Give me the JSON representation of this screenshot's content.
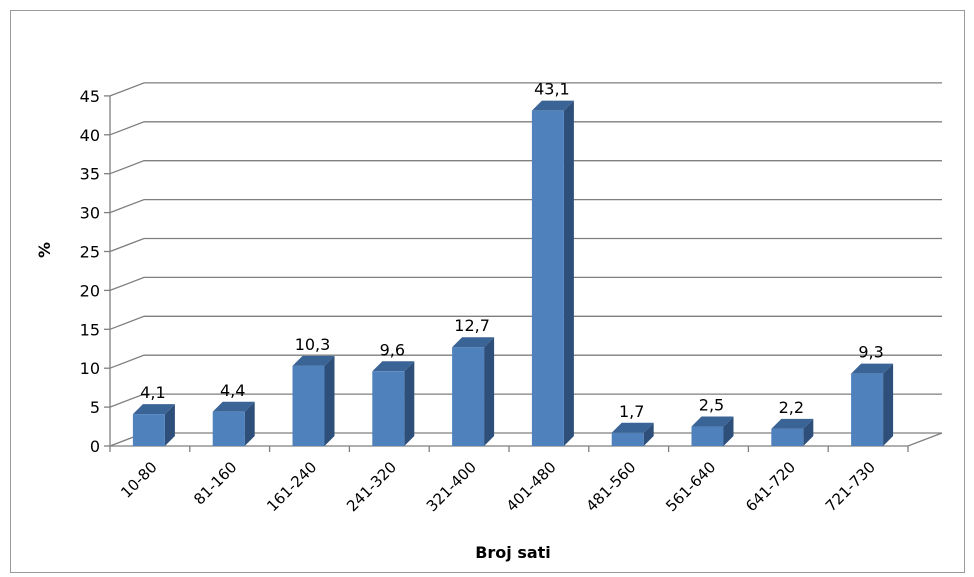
{
  "chart_data": {
    "type": "bar",
    "title": "",
    "xlabel": "Broj sati",
    "ylabel": "%",
    "ylim": [
      0,
      45
    ],
    "yticks": [
      "0",
      "5",
      "10",
      "15",
      "20",
      "25",
      "30",
      "35",
      "40",
      "45"
    ],
    "categories": [
      "10-80",
      "81-160",
      "161-240",
      "241-320",
      "321-400",
      "401-480",
      "481-560",
      "561-640",
      "641-720",
      "721-730"
    ],
    "values": [
      4.1,
      4.4,
      10.3,
      9.6,
      12.7,
      43.1,
      1.7,
      2.5,
      2.2,
      9.3
    ],
    "data_labels": [
      "4,1",
      "4,4",
      "10,3",
      "9,6",
      "12,7",
      "43,1",
      "1,7",
      "2,5",
      "2,2",
      "9,3"
    ],
    "grid": true,
    "legend": "none",
    "style": "3d-column",
    "colors": {
      "bar_front": "#4F81BD",
      "bar_side": "#2E4F7A",
      "bar_top": "#3B6496",
      "grid": "#7f7f7f"
    }
  }
}
